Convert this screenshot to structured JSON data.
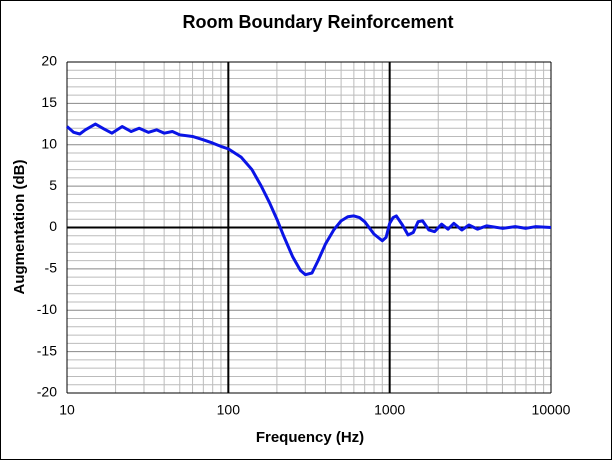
{
  "chart_data": {
    "type": "line",
    "title": "Room Boundary Reinforcement",
    "x_label": "Frequency (Hz)",
    "y_label": "Augmentation (dB)",
    "x_scale": "log",
    "x": [
      10,
      11,
      12,
      13,
      15,
      17,
      19,
      22,
      25,
      28,
      32,
      36,
      40,
      45,
      50,
      60,
      70,
      80,
      90,
      100,
      120,
      140,
      160,
      180,
      200,
      220,
      250,
      280,
      300,
      330,
      360,
      400,
      450,
      500,
      550,
      600,
      650,
      700,
      800,
      900,
      950,
      1000,
      1050,
      1100,
      1200,
      1300,
      1400,
      1500,
      1600,
      1750,
      1900,
      2100,
      2300,
      2500,
      2800,
      3100,
      3500,
      4000,
      5000,
      6000,
      7000,
      8000,
      10000
    ],
    "series": [
      {
        "color": "#0a14e6",
        "values": [
          12.2,
          11.5,
          11.3,
          11.8,
          12.5,
          11.9,
          11.4,
          12.2,
          11.6,
          12.0,
          11.5,
          11.8,
          11.4,
          11.6,
          11.2,
          11.0,
          10.6,
          10.2,
          9.8,
          9.5,
          8.5,
          7.0,
          5.0,
          3.0,
          1.0,
          -1.0,
          -3.5,
          -5.2,
          -5.7,
          -5.5,
          -4.0,
          -2.0,
          -0.3,
          0.8,
          1.3,
          1.4,
          1.2,
          0.7,
          -0.8,
          -1.6,
          -1.2,
          0.5,
          1.2,
          1.4,
          0.3,
          -0.9,
          -0.6,
          0.7,
          0.8,
          -0.3,
          -0.5,
          0.4,
          -0.2,
          0.5,
          -0.3,
          0.3,
          -0.2,
          0.2,
          -0.1,
          0.1,
          -0.1,
          0.1,
          0.0
        ]
      }
    ],
    "xlim": [
      10,
      10000
    ],
    "ylim": [
      -20,
      20
    ],
    "xticks": [
      10,
      100,
      1000,
      10000
    ],
    "yticks": [
      -20,
      -15,
      -10,
      -5,
      0,
      5,
      10,
      15,
      20
    ],
    "x_minor_ticks": [
      20,
      30,
      40,
      50,
      60,
      70,
      80,
      90,
      200,
      300,
      400,
      500,
      600,
      700,
      800,
      900,
      2000,
      3000,
      4000,
      5000,
      6000,
      7000,
      8000,
      9000
    ],
    "y_minor_ticks": [
      -19,
      -18,
      -17,
      -16,
      -14,
      -13,
      -12,
      -11,
      -9,
      -8,
      -7,
      -6,
      -4,
      -3,
      -2,
      -1,
      1,
      2,
      3,
      4,
      6,
      7,
      8,
      9,
      11,
      12,
      13,
      14,
      16,
      17,
      18,
      19
    ],
    "grid": true
  }
}
